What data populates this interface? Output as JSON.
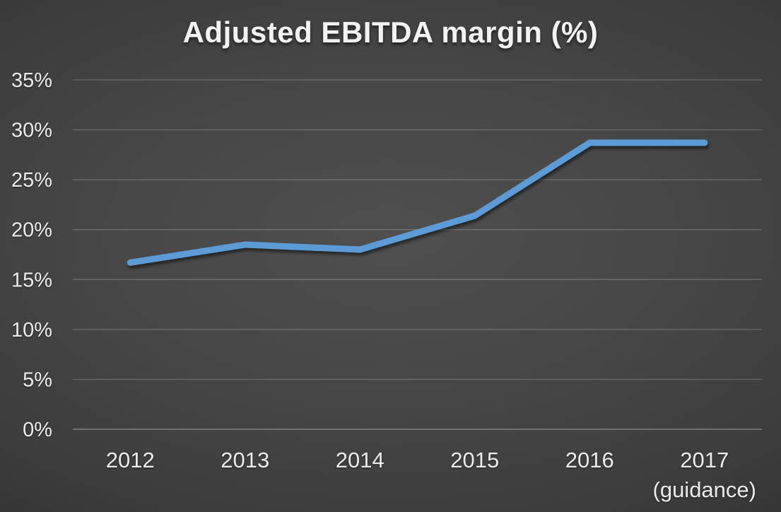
{
  "title": "Adjusted EBITDA margin (%)",
  "chart_data": {
    "type": "line",
    "title": "Adjusted EBITDA margin (%)",
    "categories": [
      "2012",
      "2013",
      "2014",
      "2015",
      "2016",
      "2017 (guidance)"
    ],
    "x_labels": [
      {
        "lines": [
          "2012"
        ]
      },
      {
        "lines": [
          "2013"
        ]
      },
      {
        "lines": [
          "2014"
        ]
      },
      {
        "lines": [
          "2015"
        ]
      },
      {
        "lines": [
          "2016"
        ]
      },
      {
        "lines": [
          "2017",
          "(guidance)"
        ]
      }
    ],
    "series": [
      {
        "name": "Adjusted EBITDA margin",
        "values": [
          16.7,
          18.5,
          18.0,
          21.4,
          28.7,
          28.7
        ]
      }
    ],
    "unit": "%",
    "y_ticks": [
      "0%",
      "5%",
      "10%",
      "15%",
      "20%",
      "25%",
      "30%",
      "35%"
    ],
    "y_tick_values": [
      0,
      5,
      10,
      15,
      20,
      25,
      30,
      35
    ],
    "ylim": [
      0,
      35
    ],
    "grid": true,
    "legend": "none",
    "line_color": "#5B9BD5",
    "text_color": "#ECECEC",
    "background_center_color": "#4F4F4F",
    "background_edge_color": "#1D1D1D"
  }
}
